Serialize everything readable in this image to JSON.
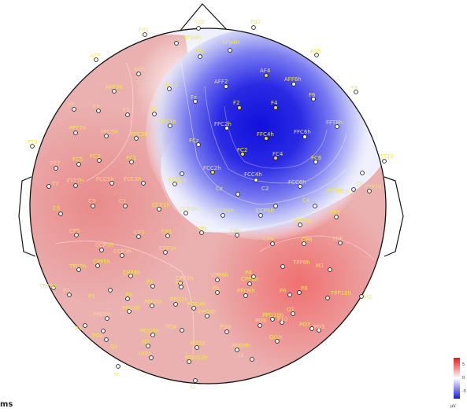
{
  "chart_data": {
    "type": "heatmap",
    "time_label": "ms",
    "colorbar": {
      "ticks": [
        "5",
        "0",
        "-5"
      ],
      "unit": "µV",
      "colors": [
        "#e11a1a",
        "#ffffff",
        "#1a1ae1"
      ]
    },
    "electrodes": [
      {
        "name": "Fpz",
        "color": "white"
      },
      {
        "name": "Fp1",
        "color": "white"
      },
      {
        "name": "Fp2",
        "color": "white"
      },
      {
        "name": "AFp4h",
        "color": "white"
      },
      {
        "name": "AFp4h",
        "color": "white"
      },
      {
        "name": "AF7",
        "color": "white"
      },
      {
        "name": "AFz",
        "color": "white"
      },
      {
        "name": "AF8",
        "color": "white"
      },
      {
        "name": "AF4",
        "color": "yellow"
      },
      {
        "name": "AFF2",
        "color": "white"
      },
      {
        "name": "AFF6h",
        "color": "white"
      },
      {
        "name": "AFF5h",
        "color": "white"
      },
      {
        "name": "AF3",
        "color": "white"
      },
      {
        "name": "AFF1",
        "color": "white"
      },
      {
        "name": "F8",
        "color": "white"
      },
      {
        "name": "F7",
        "color": "white"
      },
      {
        "name": "F5",
        "color": "white"
      },
      {
        "name": "F3",
        "color": "white"
      },
      {
        "name": "F1",
        "color": "white"
      },
      {
        "name": "Fz",
        "color": "white"
      },
      {
        "name": "F2",
        "color": "yellow"
      },
      {
        "name": "F4",
        "color": "yellow"
      },
      {
        "name": "F6",
        "color": "white"
      },
      {
        "name": "FFT8h",
        "color": "white"
      },
      {
        "name": "FFC2h",
        "color": "white"
      },
      {
        "name": "FFC4h",
        "color": "yellow"
      },
      {
        "name": "FFC6h",
        "color": "white"
      },
      {
        "name": "FT9",
        "color": "white"
      },
      {
        "name": "FFT7h",
        "color": "white"
      },
      {
        "name": "FFC5h",
        "color": "white"
      },
      {
        "name": "FFC3h",
        "color": "white"
      },
      {
        "name": "FFC1h",
        "color": "white"
      },
      {
        "name": "FCz",
        "color": "white"
      },
      {
        "name": "FC2",
        "color": "yellow"
      },
      {
        "name": "FC4",
        "color": "yellow"
      },
      {
        "name": "FC6",
        "color": "white"
      },
      {
        "name": "FT10",
        "color": "white"
      },
      {
        "name": "FT7",
        "color": "white"
      },
      {
        "name": "FC5",
        "color": "white"
      },
      {
        "name": "FC3",
        "color": "white"
      },
      {
        "name": "FC1",
        "color": "white"
      },
      {
        "name": "FCC2h",
        "color": "white"
      },
      {
        "name": "FCC4h",
        "color": "yellow"
      },
      {
        "name": "FCC6h",
        "color": "white"
      },
      {
        "name": "FTT8h",
        "color": "white"
      },
      {
        "name": "T7",
        "color": "white"
      },
      {
        "name": "FTT7h",
        "color": "white"
      },
      {
        "name": "FCC5h",
        "color": "white"
      },
      {
        "name": "FCC3h",
        "color": "white"
      },
      {
        "name": "FCC1h",
        "color": "white"
      },
      {
        "name": "Cz",
        "color": "white"
      },
      {
        "name": "C2",
        "color": "white"
      },
      {
        "name": "C4",
        "color": "white"
      },
      {
        "name": "C6",
        "color": "white"
      },
      {
        "name": "T8",
        "color": "white"
      },
      {
        "name": "TTP7h",
        "color": "white"
      },
      {
        "name": "C5",
        "color": "white"
      },
      {
        "name": "C3",
        "color": "white"
      },
      {
        "name": "C1",
        "color": "white"
      },
      {
        "name": "CCP1h",
        "color": "white"
      },
      {
        "name": "CCP2h",
        "color": "white"
      },
      {
        "name": "CCP4h",
        "color": "white"
      },
      {
        "name": "CCP6h",
        "color": "white"
      },
      {
        "name": "TTP8h",
        "color": "white"
      },
      {
        "name": "TP7",
        "color": "white"
      },
      {
        "name": "CP5",
        "color": "white"
      },
      {
        "name": "CCP5h",
        "color": "white"
      },
      {
        "name": "CCP3h",
        "color": "white"
      },
      {
        "name": "CP3",
        "color": "white"
      },
      {
        "name": "CP1",
        "color": "white"
      },
      {
        "name": "CPz",
        "color": "white"
      },
      {
        "name": "CP2",
        "color": "white"
      },
      {
        "name": "CP4",
        "color": "white"
      },
      {
        "name": "CP6",
        "color": "white"
      },
      {
        "name": "TP8",
        "color": "white"
      },
      {
        "name": "TPP7h",
        "color": "white"
      },
      {
        "name": "CPP5h",
        "color": "white"
      },
      {
        "name": "CPP3h",
        "color": "white"
      },
      {
        "name": "CPP1h",
        "color": "white"
      },
      {
        "name": "CPP2h",
        "color": "white"
      },
      {
        "name": "CPP4h",
        "color": "white"
      },
      {
        "name": "CPP6h",
        "color": "white"
      },
      {
        "name": "TPP8h",
        "color": "white"
      },
      {
        "name": "M1",
        "color": "white"
      },
      {
        "name": "TPP9h",
        "color": "white"
      },
      {
        "name": "P7",
        "color": "white"
      },
      {
        "name": "P5",
        "color": "white"
      },
      {
        "name": "P3",
        "color": "white"
      },
      {
        "name": "P1",
        "color": "white"
      },
      {
        "name": "Pz",
        "color": "white"
      },
      {
        "name": "P2",
        "color": "white"
      },
      {
        "name": "P4",
        "color": "white"
      },
      {
        "name": "P6",
        "color": "white"
      },
      {
        "name": "P8",
        "color": "white"
      },
      {
        "name": "TPP10h",
        "color": "white"
      },
      {
        "name": "M2",
        "color": "white"
      },
      {
        "name": "P9",
        "color": "white"
      },
      {
        "name": "PPO5h",
        "color": "white"
      },
      {
        "name": "PPO3h",
        "color": "white"
      },
      {
        "name": "PPO1h",
        "color": "white"
      },
      {
        "name": "PPO2h",
        "color": "white"
      },
      {
        "name": "PPO4h",
        "color": "white"
      },
      {
        "name": "PPO6h",
        "color": "white"
      },
      {
        "name": "PPO10h",
        "color": "white"
      },
      {
        "name": "P10",
        "color": "white"
      },
      {
        "name": "PO7",
        "color": "white"
      },
      {
        "name": "PO3",
        "color": "white"
      },
      {
        "name": "POz",
        "color": "white"
      },
      {
        "name": "POO3h",
        "color": "white"
      },
      {
        "name": "POO4h",
        "color": "white"
      },
      {
        "name": "PO4",
        "color": "white"
      },
      {
        "name": "PO8",
        "color": "white"
      },
      {
        "name": "PO9",
        "color": "white"
      },
      {
        "name": "O1",
        "color": "white"
      },
      {
        "name": "Oz",
        "color": "white"
      },
      {
        "name": "O2",
        "color": "white"
      },
      {
        "name": "PO10",
        "color": "white"
      },
      {
        "name": "POO9h",
        "color": "white"
      },
      {
        "name": "OI1h",
        "color": "white"
      },
      {
        "name": "OI2h",
        "color": "white"
      },
      {
        "name": "POO10h",
        "color": "white"
      },
      {
        "name": "I1",
        "color": "white"
      },
      {
        "name": "Iz",
        "color": "white"
      },
      {
        "name": "I2",
        "color": "white"
      }
    ]
  }
}
